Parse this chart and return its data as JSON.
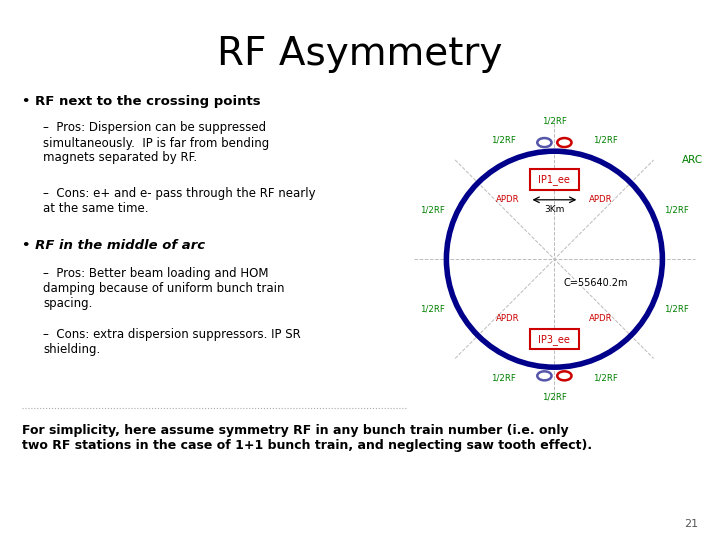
{
  "title": "RF Asymmetry",
  "title_fontsize": 28,
  "background_color": "#ffffff",
  "bullet1_bold": "RF next to the crossing points",
  "bullet1_sub1": "Pros: Dispersion can be suppressed\nsimultaneously.  IP is far from bending\nmagnets separated by RF.",
  "bullet1_sub2": "Cons: e+ and e- pass through the RF nearly\nat the same time.",
  "bullet2_bold": "RF in the middle of arc",
  "bullet2_sub1": "Pros: Better beam loading and HOM\ndamping because of uniform bunch train\nspacing.",
  "bullet2_sub2": "Cons: extra dispersion suppressors. IP SR\nshielding.",
  "footer": "For simplicity, here assume symmetry RF in any bunch train number (i.e. only\ntwo RF stations in the case of 1+1 bunch train, and neglecting saw tooth effect).",
  "page_number": "21",
  "ring_color": "#00008B",
  "label_color_green": "#008000",
  "label_color_red": "#cc0000",
  "half_rf_color": "#008000"
}
